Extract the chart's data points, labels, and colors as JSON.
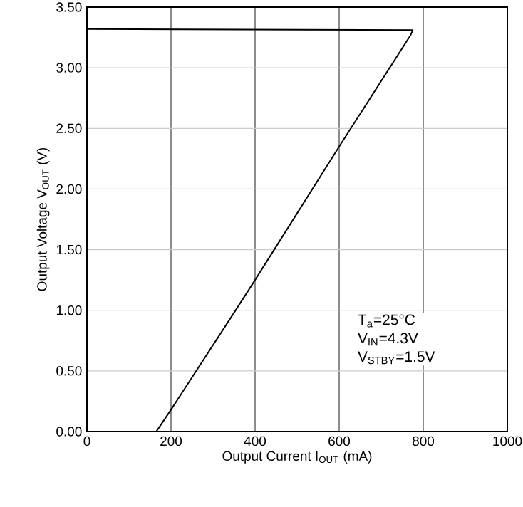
{
  "chart_data": {
    "type": "line",
    "xlabel": "Output Current I$_{OUT}$ (mA)",
    "ylabel": "Output Voltage V$_{OUT}$ (V)",
    "x": [
      0,
      775,
      770,
      600,
      400,
      350,
      200,
      165
    ],
    "values": [
      3.32,
      3.31,
      3.27,
      2.35,
      1.25,
      0.98,
      0.18,
      0
    ],
    "color": "#000000",
    "xlim": [
      0,
      1000
    ],
    "xticks": [
      0,
      200,
      400,
      600,
      800,
      1000
    ],
    "ylim": [
      0,
      3.5
    ],
    "yticks": [
      {
        "value": 0,
        "label": "0.00"
      },
      {
        "value": 0.5,
        "label": "0.50"
      },
      {
        "value": 1,
        "label": "1.00"
      },
      {
        "value": 1.5,
        "label": "1.50"
      },
      {
        "value": 2,
        "label": "2.00"
      },
      {
        "value": 2.5,
        "label": "2.50"
      },
      {
        "value": 3,
        "label": "3.00"
      },
      {
        "value": 3.5,
        "label": "3.50"
      }
    ],
    "grid": true,
    "marker": "none",
    "line_style": "solid",
    "annotations": [
      "T$_{a}$=25°C",
      "V$_{IN}$=4.3V",
      "V$_{STBY}$=1.5V"
    ]
  }
}
